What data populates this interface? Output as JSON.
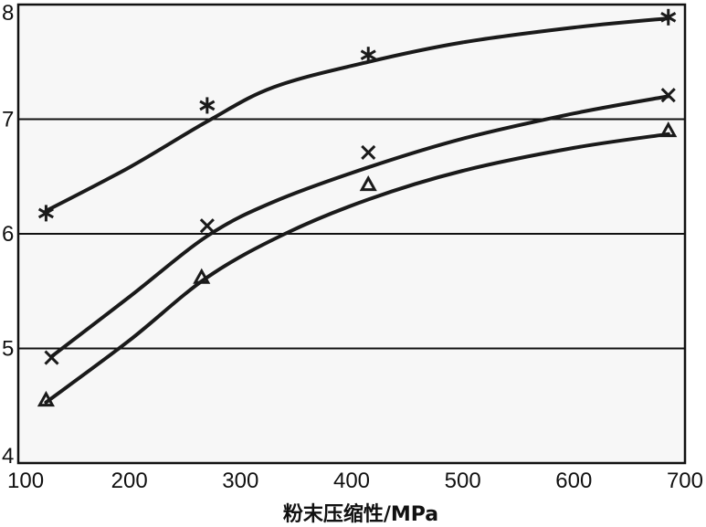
{
  "chart_data": {
    "type": "line",
    "title": "",
    "xlabel": "粉末压缩性/MPa",
    "ylabel": "",
    "xlim": [
      100,
      700
    ],
    "ylim": [
      4,
      8
    ],
    "xticks": [
      100,
      200,
      300,
      400,
      500,
      600,
      700
    ],
    "yticks": [
      4,
      5,
      6,
      7,
      8
    ],
    "xtick_labels": [
      "100",
      "200",
      "300",
      "400",
      "500",
      "600",
      "700"
    ],
    "ytick_labels": [
      "4",
      "5",
      "6",
      "7",
      "8"
    ],
    "gridlines_y": [
      5,
      6,
      7
    ],
    "series": [
      {
        "name": "asterisk",
        "marker": "asterisk",
        "x": [
          125,
          270,
          415,
          685
        ],
        "y": [
          6.18,
          7.12,
          7.56,
          7.89
        ],
        "curve": [
          [
            125,
            6.2
          ],
          [
            200,
            6.58
          ],
          [
            270,
            6.98
          ],
          [
            330,
            7.28
          ],
          [
            415,
            7.5
          ],
          [
            500,
            7.67
          ],
          [
            600,
            7.8
          ],
          [
            685,
            7.88
          ]
        ]
      },
      {
        "name": "cross",
        "marker": "x",
        "x": [
          130,
          270,
          415,
          685
        ],
        "y": [
          4.92,
          6.07,
          6.71,
          7.21
        ],
        "curve": [
          [
            130,
            4.93
          ],
          [
            200,
            5.45
          ],
          [
            270,
            5.98
          ],
          [
            330,
            6.28
          ],
          [
            415,
            6.58
          ],
          [
            500,
            6.83
          ],
          [
            600,
            7.05
          ],
          [
            685,
            7.2
          ]
        ]
      },
      {
        "name": "triangle",
        "marker": "triangle",
        "x": [
          125,
          265,
          415,
          685
        ],
        "y": [
          4.55,
          5.62,
          6.43,
          6.9
        ],
        "curve": [
          [
            125,
            4.53
          ],
          [
            200,
            5.07
          ],
          [
            270,
            5.62
          ],
          [
            340,
            6.0
          ],
          [
            415,
            6.3
          ],
          [
            500,
            6.55
          ],
          [
            600,
            6.75
          ],
          [
            685,
            6.87
          ]
        ]
      }
    ]
  }
}
